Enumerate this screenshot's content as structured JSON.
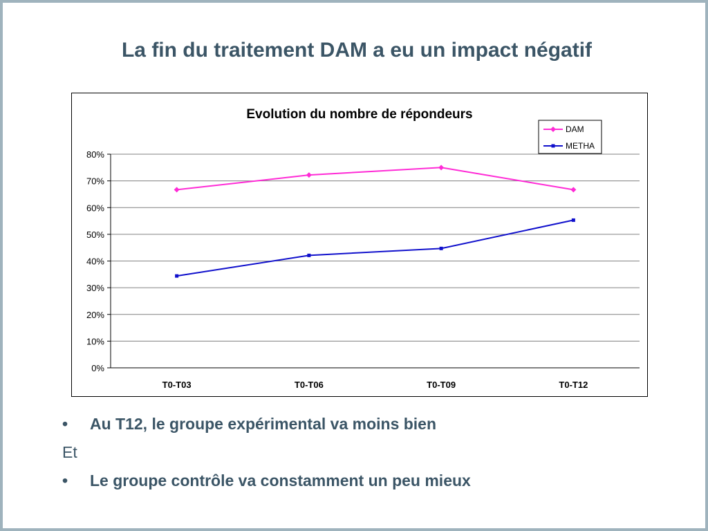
{
  "slide": {
    "title": "La fin du traitement DAM a eu un impact négatif"
  },
  "colors": {
    "title": "#3b5566",
    "frame": "#9fb3bd",
    "dam": "#ff2bd6",
    "metha": "#1010cc",
    "gridline": "#808080"
  },
  "chart_data": {
    "type": "line",
    "title": "Evolution du nombre de répondeurs",
    "categories": [
      "T0-T03",
      "T0-T06",
      "T0-T09",
      "T0-T12"
    ],
    "series": [
      {
        "name": "DAM",
        "values": [
          0.667,
          0.722,
          0.75,
          0.667
        ],
        "color": "#ff2bd6",
        "marker": "diamond"
      },
      {
        "name": "METHA",
        "values": [
          0.344,
          0.421,
          0.447,
          0.553
        ],
        "color": "#1010cc",
        "marker": "square"
      }
    ],
    "ylim": [
      0,
      0.8
    ],
    "yticks": [
      0,
      0.1,
      0.2,
      0.3,
      0.4,
      0.5,
      0.6,
      0.7,
      0.8
    ],
    "ytick_labels": [
      "0%",
      "10%",
      "20%",
      "30%",
      "40%",
      "50%",
      "60%",
      "70%",
      "80%"
    ],
    "xlabel": "",
    "ylabel": "",
    "grid": true,
    "legend": "top-right"
  },
  "bullets": [
    {
      "marker": "•",
      "text": "Au T12, le groupe expérimental va moins bien"
    },
    {
      "text": "Et"
    },
    {
      "marker": "•",
      "text": "Le groupe contrôle va constamment un peu mieux"
    }
  ]
}
